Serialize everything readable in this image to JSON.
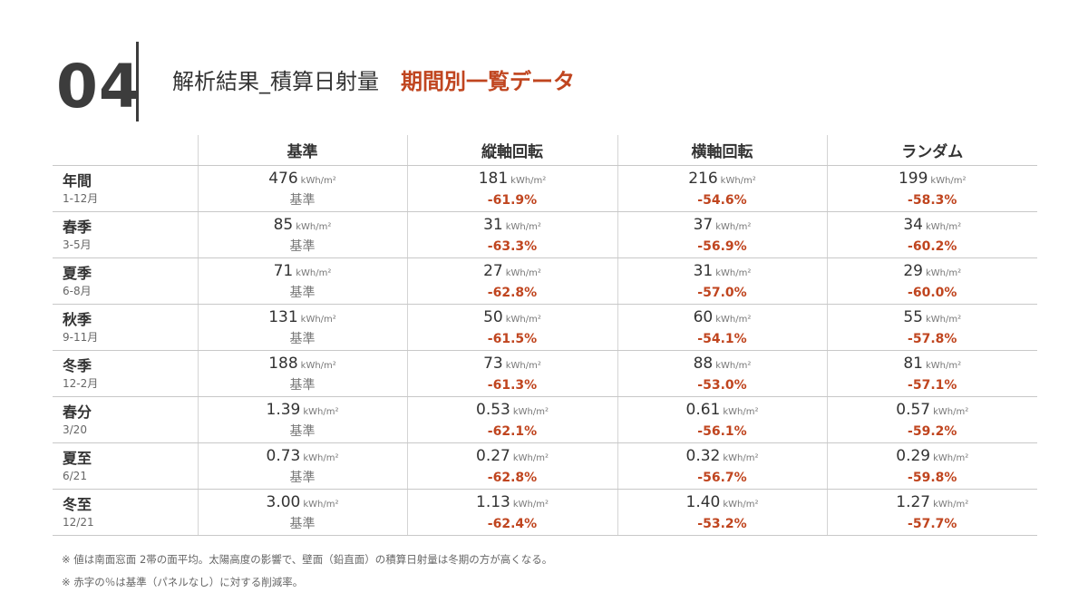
{
  "header": {
    "number": "04",
    "title": "解析結果_積算日射量",
    "subtitle": "期間別一覧データ"
  },
  "table": {
    "columns": [
      "基準",
      "縦軸回転",
      "横軸回転",
      "ランダム"
    ],
    "unit": "kWh/m²",
    "rows": [
      {
        "name": "年間",
        "range": "1-12月",
        "cells": [
          {
            "value": "476",
            "sub": "基準"
          },
          {
            "value": "181",
            "sub": "-61.9%"
          },
          {
            "value": "216",
            "sub": "-54.6%"
          },
          {
            "value": "199",
            "sub": "-58.3%"
          }
        ]
      },
      {
        "name": "春季",
        "range": "3-5月",
        "cells": [
          {
            "value": "85",
            "sub": "基準"
          },
          {
            "value": "31",
            "sub": "-63.3%"
          },
          {
            "value": "37",
            "sub": "-56.9%"
          },
          {
            "value": "34",
            "sub": "-60.2%"
          }
        ]
      },
      {
        "name": "夏季",
        "range": "6-8月",
        "cells": [
          {
            "value": "71",
            "sub": "基準"
          },
          {
            "value": "27",
            "sub": "-62.8%"
          },
          {
            "value": "31",
            "sub": "-57.0%"
          },
          {
            "value": "29",
            "sub": "-60.0%"
          }
        ]
      },
      {
        "name": "秋季",
        "range": "9-11月",
        "cells": [
          {
            "value": "131",
            "sub": "基準"
          },
          {
            "value": "50",
            "sub": "-61.5%"
          },
          {
            "value": "60",
            "sub": "-54.1%"
          },
          {
            "value": "55",
            "sub": "-57.8%"
          }
        ]
      },
      {
        "name": "冬季",
        "range": "12-2月",
        "cells": [
          {
            "value": "188",
            "sub": "基準"
          },
          {
            "value": "73",
            "sub": "-61.3%"
          },
          {
            "value": "88",
            "sub": "-53.0%"
          },
          {
            "value": "81",
            "sub": "-57.1%"
          }
        ]
      },
      {
        "name": "春分",
        "range": "3/20",
        "cells": [
          {
            "value": "1.39",
            "sub": "基準"
          },
          {
            "value": "0.53",
            "sub": "-62.1%"
          },
          {
            "value": "0.61",
            "sub": "-56.1%"
          },
          {
            "value": "0.57",
            "sub": "-59.2%"
          }
        ]
      },
      {
        "name": "夏至",
        "range": "6/21",
        "cells": [
          {
            "value": "0.73",
            "sub": "基準"
          },
          {
            "value": "0.27",
            "sub": "-62.8%"
          },
          {
            "value": "0.32",
            "sub": "-56.7%"
          },
          {
            "value": "0.29",
            "sub": "-59.8%"
          }
        ]
      },
      {
        "name": "冬至",
        "range": "12/21",
        "cells": [
          {
            "value": "3.00",
            "sub": "基準"
          },
          {
            "value": "1.13",
            "sub": "-62.4%"
          },
          {
            "value": "1.40",
            "sub": "-53.2%"
          },
          {
            "value": "1.27",
            "sub": "-57.7%"
          }
        ]
      }
    ]
  },
  "footnotes": [
    "※ 値は南面窓面 2帯の面平均。太陽高度の影響で、壁面（鉛直面）の積算日射量は冬期の方が高くなる。",
    "※ 赤字の％は基準（パネルなし）に対する削減率。"
  ],
  "colors": {
    "accent": "#c0451f",
    "text": "#333333",
    "muted": "#777777",
    "rule": "#c8c8c8"
  }
}
